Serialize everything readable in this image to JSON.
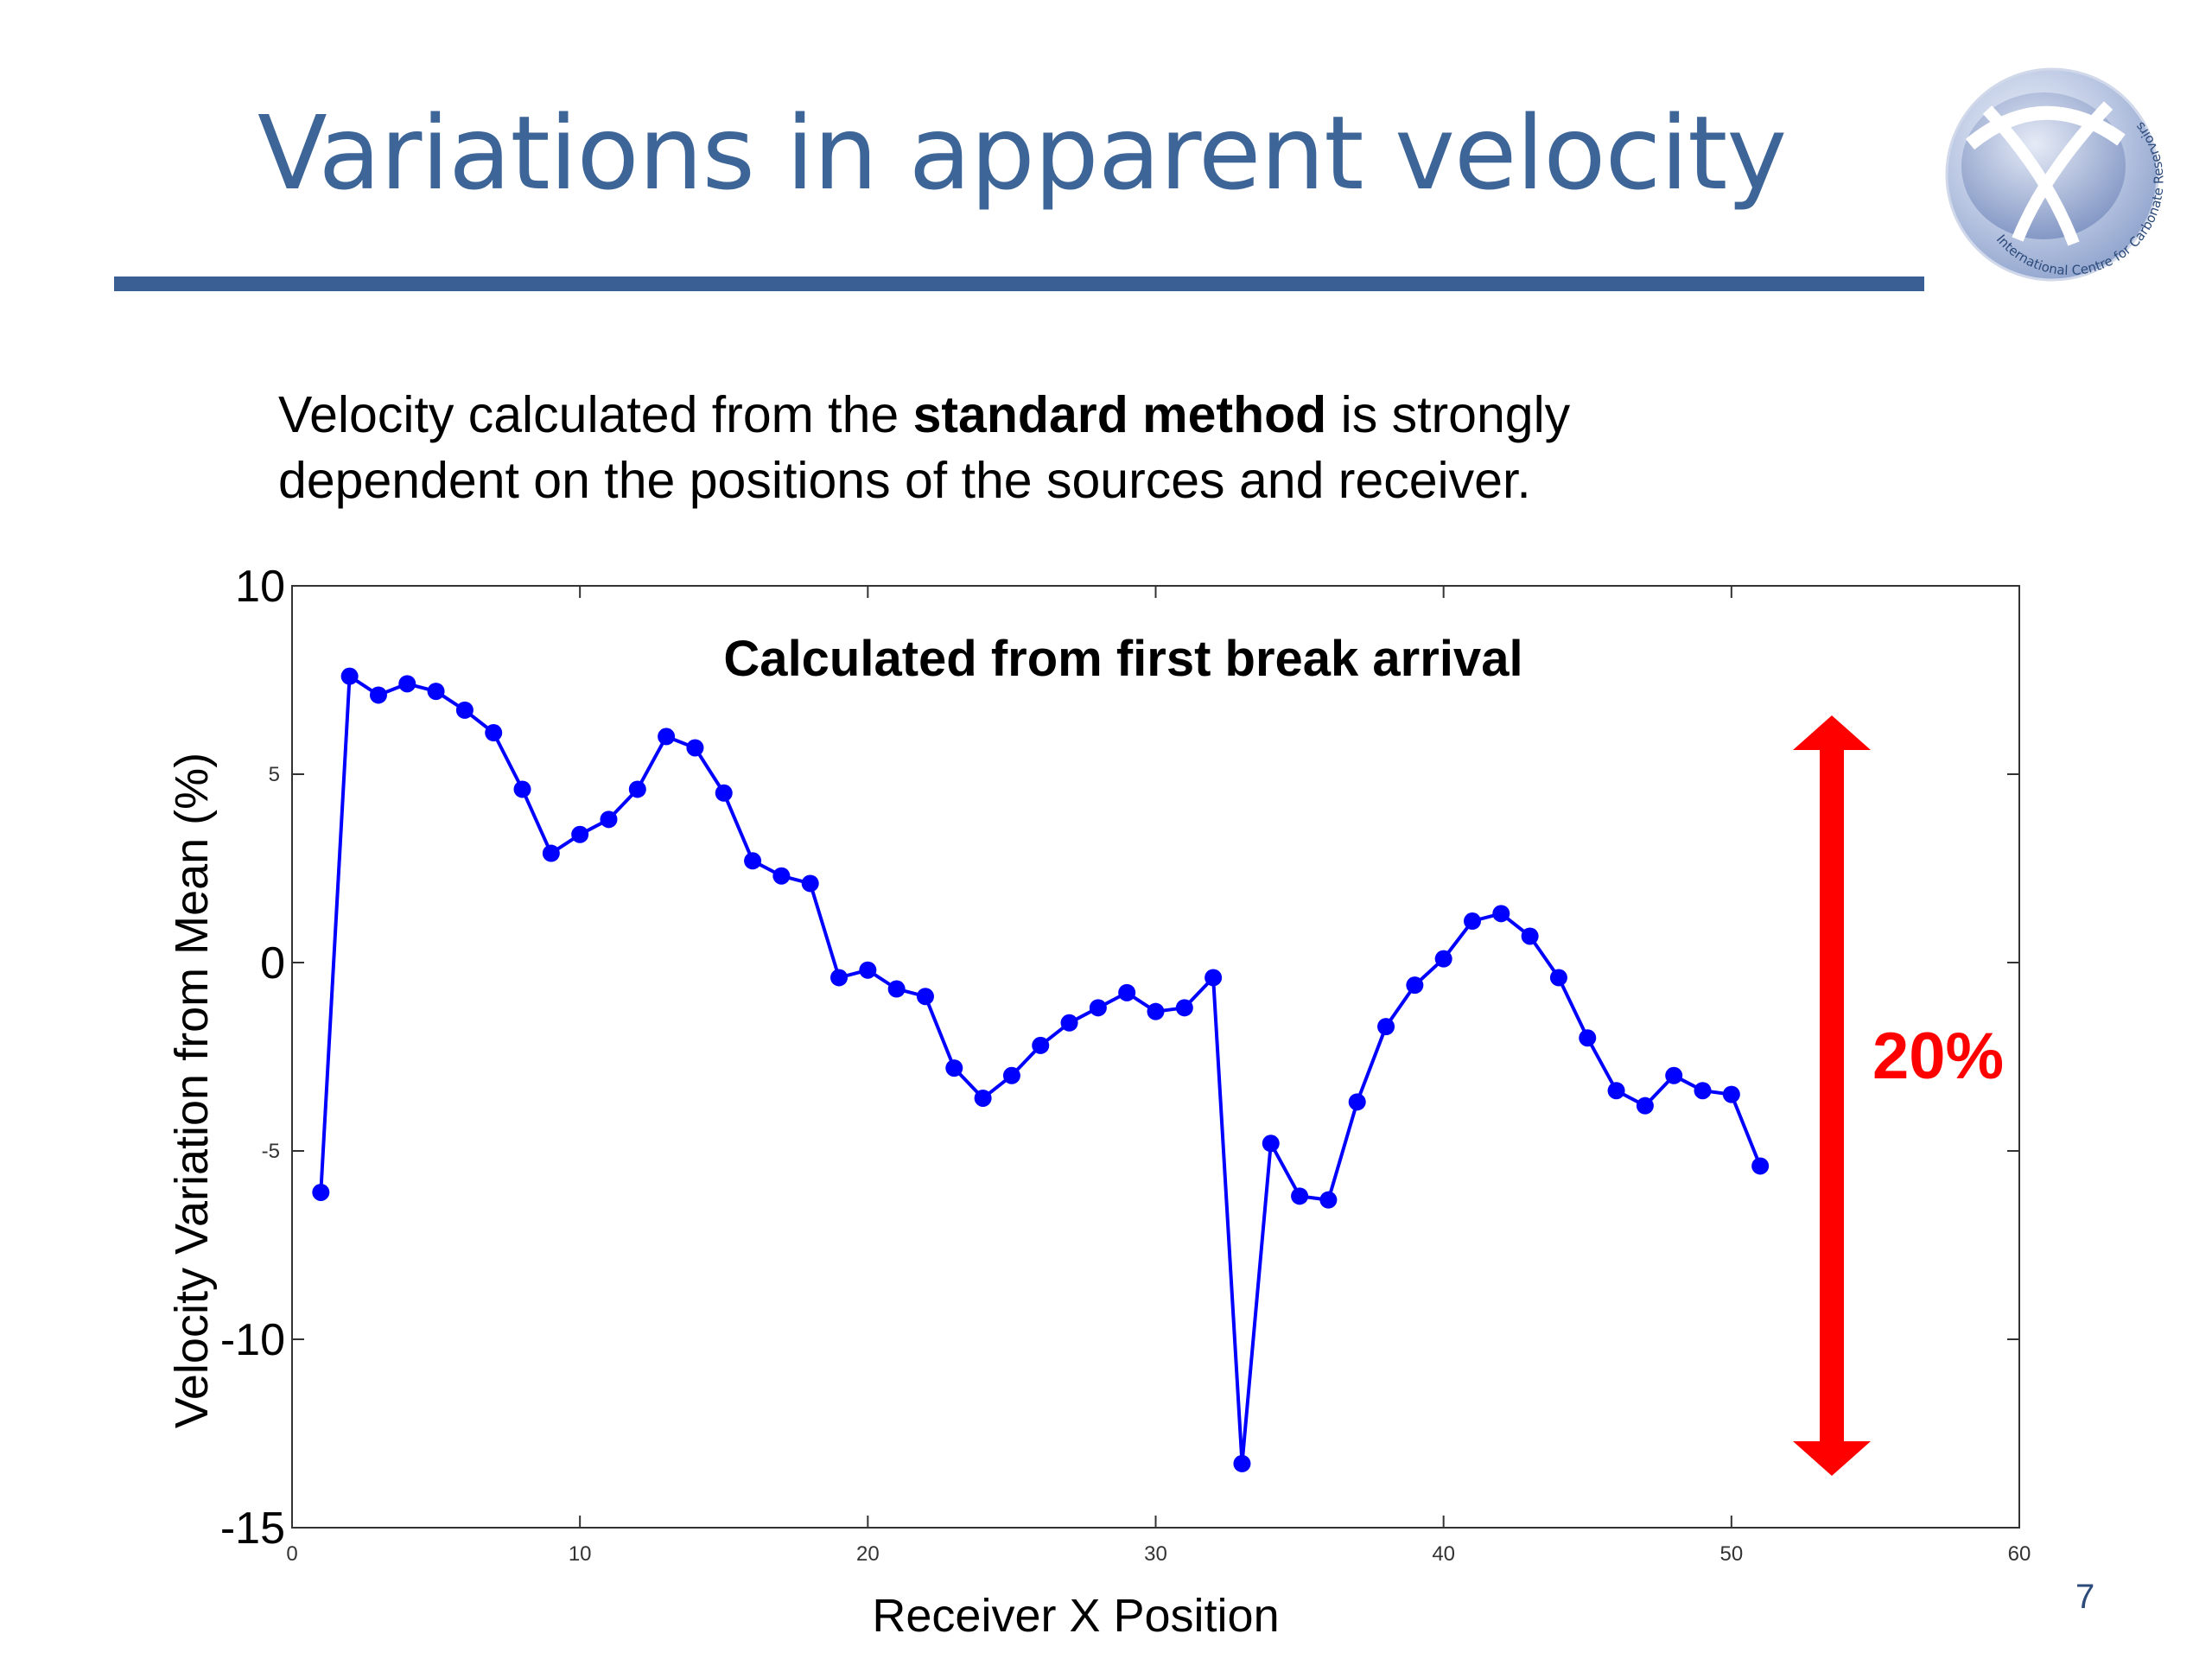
{
  "slide": {
    "title": "Variations in apparent velocity",
    "body_pre": "Velocity calculated from the ",
    "body_bold": "standard method",
    "body_post": " is strongly",
    "body_line2": "dependent on the positions of the sources and receiver.",
    "page_number": "7",
    "logo_text": "International Centre for Carbonate Reservoirs"
  },
  "annotation": {
    "label": "20%",
    "color": "#ff0000"
  },
  "chart_data": {
    "type": "line",
    "title": "Calculated from first break arrival",
    "xlabel": "Receiver X Position",
    "ylabel": "Velocity Variation from Mean (%)",
    "xlim": [
      0,
      60
    ],
    "ylim": [
      -15,
      10
    ],
    "x_ticks": [
      0,
      10,
      20,
      30,
      40,
      50,
      60
    ],
    "y_ticks": [
      10,
      5,
      0,
      -5,
      -10,
      -15
    ],
    "grid": false,
    "line_color": "#0000ff",
    "marker": "circle",
    "series": [
      {
        "x": [
          1,
          2,
          3,
          4,
          5,
          6,
          7,
          8,
          9,
          10,
          11,
          12,
          13,
          14,
          15,
          16,
          17,
          18,
          19,
          20,
          21,
          22,
          23,
          24,
          25,
          26,
          27,
          28,
          29,
          30,
          31,
          32,
          33,
          34,
          35,
          36,
          37,
          38,
          39,
          40,
          41,
          42,
          43,
          44,
          45,
          46,
          47,
          48,
          49,
          50,
          51
        ],
        "values": [
          -6.1,
          7.6,
          7.1,
          7.4,
          7.2,
          6.7,
          6.1,
          4.6,
          2.9,
          3.4,
          3.8,
          4.6,
          6.0,
          5.7,
          4.5,
          2.7,
          2.3,
          2.1,
          -0.4,
          -0.2,
          -0.7,
          -0.9,
          -2.8,
          -3.6,
          -3.0,
          -2.2,
          -1.6,
          -1.2,
          -0.8,
          -1.3,
          -1.2,
          -0.4,
          -13.3,
          -4.8,
          -6.2,
          -6.3,
          -3.7,
          -1.7,
          -0.6,
          0.1,
          1.1,
          1.3,
          0.7,
          -0.4,
          -2.0,
          -3.4,
          -3.8,
          -3.0,
          -3.4,
          -3.5,
          -5.4
        ]
      }
    ]
  }
}
